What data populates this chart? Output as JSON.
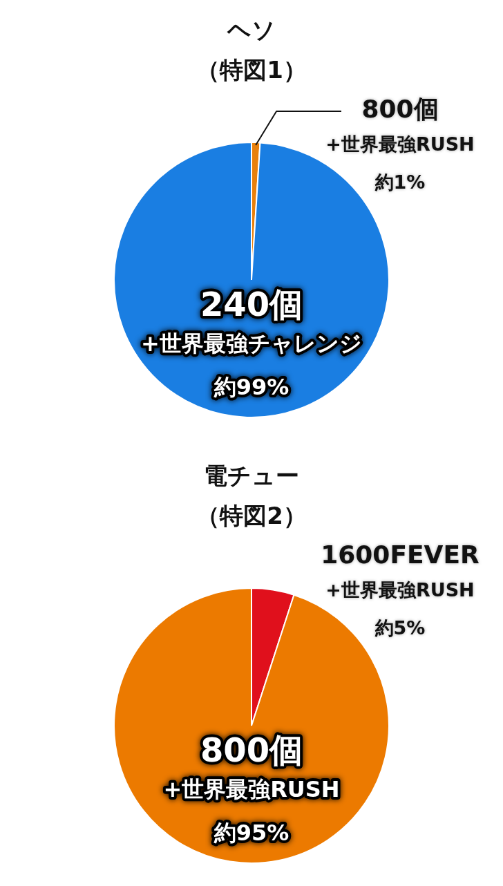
{
  "chart_data": [
    {
      "type": "pie",
      "title": "ヘソ",
      "subtitle": "（特図1）",
      "categories": [
        "800個\n+世界最強RUSH",
        "240個\n+世界最強チャレンジ"
      ],
      "values": [
        1,
        99
      ],
      "value_labels": [
        "約1%",
        "約99%"
      ],
      "colors": [
        "#e8800c",
        "#1a7ee2"
      ]
    },
    {
      "type": "pie",
      "title": "電チュー",
      "subtitle": "（特図2）",
      "categories": [
        "1600FEVER\n+世界最強RUSH",
        "800個\n+世界最強RUSH"
      ],
      "values": [
        5,
        95
      ],
      "value_labels": [
        "約5%",
        "約95%"
      ],
      "colors": [
        "#e0101c",
        "#ec7a00"
      ]
    }
  ]
}
